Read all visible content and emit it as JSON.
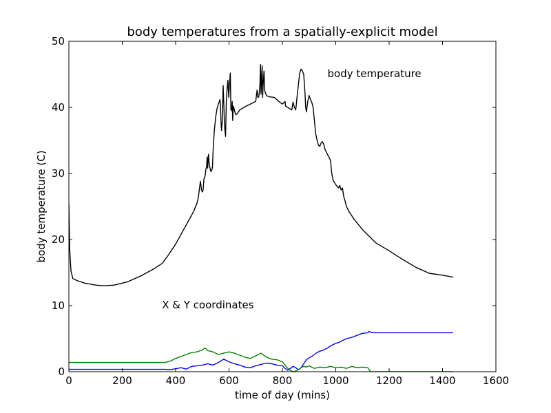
{
  "chart_data": {
    "type": "line",
    "title": "body temperatures from a spatially-explicit model",
    "xlabel": "time of day (mins)",
    "ylabel": "body temperature (C)",
    "xlim": [
      0,
      1600
    ],
    "ylim": [
      0,
      50
    ],
    "xticks": [
      0,
      200,
      400,
      600,
      800,
      1000,
      1200,
      1400,
      1600
    ],
    "yticks": [
      0,
      10,
      20,
      30,
      40,
      50
    ],
    "grid": false,
    "annotations": [
      {
        "text": "body temperature",
        "x": 1000,
        "y": 45
      },
      {
        "text": "X & Y coordinates",
        "x": 380,
        "y": 10
      }
    ],
    "series": [
      {
        "color": "#000000",
        "points": [
          [
            0,
            25.5
          ],
          [
            3,
            18.5
          ],
          [
            8,
            15.2
          ],
          [
            15,
            14.1
          ],
          [
            30,
            13.8
          ],
          [
            60,
            13.4
          ],
          [
            100,
            13.1
          ],
          [
            130,
            13.0
          ],
          [
            170,
            13.1
          ],
          [
            220,
            13.6
          ],
          [
            270,
            14.5
          ],
          [
            320,
            15.6
          ],
          [
            350,
            16.4
          ],
          [
            370,
            17.5
          ],
          [
            400,
            19.3
          ],
          [
            430,
            21.5
          ],
          [
            460,
            23.7
          ],
          [
            470,
            24.5
          ],
          [
            480,
            25.5
          ],
          [
            485,
            26.3
          ],
          [
            490,
            28.0
          ],
          [
            493,
            28.8
          ],
          [
            497,
            27.5
          ],
          [
            500,
            27.2
          ],
          [
            503,
            27.5
          ],
          [
            506,
            29.2
          ],
          [
            510,
            29.5
          ],
          [
            514,
            30.8
          ],
          [
            516,
            31.0
          ],
          [
            518,
            32.5
          ],
          [
            520,
            30.8
          ],
          [
            523,
            32.9
          ],
          [
            526,
            31.4
          ],
          [
            529,
            30.8
          ],
          [
            532,
            30.3
          ],
          [
            535,
            30.4
          ],
          [
            538,
            31.0
          ],
          [
            541,
            33.9
          ],
          [
            545,
            36.5
          ],
          [
            550,
            38.5
          ],
          [
            555,
            39.8
          ],
          [
            560,
            40.5
          ],
          [
            563,
            40.8
          ],
          [
            566,
            41.2
          ],
          [
            568,
            40.2
          ],
          [
            570,
            37.8
          ],
          [
            572,
            36.5
          ],
          [
            575,
            38.0
          ],
          [
            578,
            43.3
          ],
          [
            580,
            41.0
          ],
          [
            583,
            37.3
          ],
          [
            585,
            36.5
          ],
          [
            587,
            35.6
          ],
          [
            590,
            40.9
          ],
          [
            593,
            42.9
          ],
          [
            596,
            44.1
          ],
          [
            599,
            41.5
          ],
          [
            602,
            43.8
          ],
          [
            605,
            45.2
          ],
          [
            607,
            39.7
          ],
          [
            610,
            39.5
          ],
          [
            612,
            40.9
          ],
          [
            614,
            38.0
          ],
          [
            616,
            40.2
          ],
          [
            619,
            39.8
          ],
          [
            622,
            39.3
          ],
          [
            625,
            38.9
          ],
          [
            630,
            39.0
          ],
          [
            640,
            39.6
          ],
          [
            660,
            40.1
          ],
          [
            680,
            40.5
          ],
          [
            700,
            40.9
          ],
          [
            705,
            42.6
          ],
          [
            708,
            41.5
          ],
          [
            712,
            41.6
          ],
          [
            716,
            43.5
          ],
          [
            718,
            46.5
          ],
          [
            720,
            42.0
          ],
          [
            722,
            44.5
          ],
          [
            724,
            46.3
          ],
          [
            726,
            41.5
          ],
          [
            728,
            43.5
          ],
          [
            731,
            45.5
          ],
          [
            734,
            42.5
          ],
          [
            740,
            41.8
          ],
          [
            750,
            41.6
          ],
          [
            770,
            41.5
          ],
          [
            790,
            40.8
          ],
          [
            800,
            40.5
          ],
          [
            810,
            40.9
          ],
          [
            812,
            40.2
          ],
          [
            820,
            40.0
          ],
          [
            835,
            39.6
          ],
          [
            840,
            40.8
          ],
          [
            845,
            40.0
          ],
          [
            850,
            39.6
          ],
          [
            855,
            41.6
          ],
          [
            860,
            43.5
          ],
          [
            865,
            45.2
          ],
          [
            870,
            45.8
          ],
          [
            875,
            45.5
          ],
          [
            880,
            45.0
          ],
          [
            885,
            42.0
          ],
          [
            887,
            40.1
          ],
          [
            890,
            39.3
          ],
          [
            895,
            40.9
          ],
          [
            900,
            41.8
          ],
          [
            905,
            41.2
          ],
          [
            910,
            40.8
          ],
          [
            915,
            40.0
          ],
          [
            920,
            38.0
          ],
          [
            925,
            36.0
          ],
          [
            930,
            35.0
          ],
          [
            935,
            34.3
          ],
          [
            940,
            34.1
          ],
          [
            945,
            34.6
          ],
          [
            950,
            34.8
          ],
          [
            955,
            34.4
          ],
          [
            960,
            33.6
          ],
          [
            970,
            32.8
          ],
          [
            980,
            32.0
          ],
          [
            985,
            30.0
          ],
          [
            990,
            29.0
          ],
          [
            1000,
            28.3
          ],
          [
            1010,
            27.8
          ],
          [
            1015,
            28.2
          ],
          [
            1020,
            27.5
          ],
          [
            1025,
            27.8
          ],
          [
            1030,
            26.5
          ],
          [
            1035,
            25.8
          ],
          [
            1040,
            25.0
          ],
          [
            1050,
            24.2
          ],
          [
            1070,
            23.0
          ],
          [
            1100,
            21.5
          ],
          [
            1150,
            19.5
          ],
          [
            1200,
            18.3
          ],
          [
            1250,
            17.0
          ],
          [
            1300,
            15.8
          ],
          [
            1350,
            14.9
          ],
          [
            1400,
            14.6
          ],
          [
            1440,
            14.3
          ]
        ]
      },
      {
        "color": "#0000ff",
        "points": [
          [
            0,
            0.35
          ],
          [
            360,
            0.35
          ],
          [
            380,
            0.3
          ],
          [
            400,
            0.45
          ],
          [
            420,
            0.6
          ],
          [
            440,
            0.4
          ],
          [
            460,
            0.8
          ],
          [
            480,
            0.9
          ],
          [
            500,
            1.0
          ],
          [
            520,
            1.2
          ],
          [
            540,
            1.0
          ],
          [
            560,
            1.4
          ],
          [
            580,
            1.9
          ],
          [
            600,
            1.5
          ],
          [
            620,
            1.2
          ],
          [
            640,
            1.0
          ],
          [
            660,
            0.7
          ],
          [
            680,
            0.6
          ],
          [
            700,
            0.9
          ],
          [
            720,
            1.1
          ],
          [
            740,
            1.3
          ],
          [
            760,
            1.2
          ],
          [
            780,
            1.0
          ],
          [
            800,
            0.9
          ],
          [
            810,
            0.5
          ],
          [
            820,
            0.2
          ],
          [
            830,
            0.5
          ],
          [
            840,
            0.8
          ],
          [
            850,
            0.6
          ],
          [
            860,
            0.3
          ],
          [
            870,
            0.6
          ],
          [
            880,
            1.2
          ],
          [
            890,
            1.8
          ],
          [
            900,
            2.1
          ],
          [
            910,
            2.3
          ],
          [
            920,
            2.6
          ],
          [
            930,
            2.9
          ],
          [
            940,
            3.1
          ],
          [
            950,
            3.2
          ],
          [
            960,
            3.4
          ],
          [
            970,
            3.6
          ],
          [
            980,
            3.9
          ],
          [
            990,
            4.1
          ],
          [
            1000,
            4.3
          ],
          [
            1010,
            4.4
          ],
          [
            1020,
            4.6
          ],
          [
            1030,
            4.8
          ],
          [
            1040,
            5.0
          ],
          [
            1060,
            5.2
          ],
          [
            1080,
            5.5
          ],
          [
            1100,
            5.8
          ],
          [
            1120,
            5.9
          ],
          [
            1125,
            6.1
          ],
          [
            1130,
            6.0
          ],
          [
            1140,
            5.9
          ],
          [
            1440,
            5.9
          ]
        ]
      },
      {
        "color": "#008000",
        "points": [
          [
            0,
            1.4
          ],
          [
            360,
            1.4
          ],
          [
            380,
            1.6
          ],
          [
            400,
            2.0
          ],
          [
            420,
            2.3
          ],
          [
            440,
            2.6
          ],
          [
            460,
            2.9
          ],
          [
            480,
            3.0
          ],
          [
            500,
            3.3
          ],
          [
            510,
            3.6
          ],
          [
            520,
            3.2
          ],
          [
            540,
            3.0
          ],
          [
            560,
            2.6
          ],
          [
            580,
            2.8
          ],
          [
            600,
            3.0
          ],
          [
            620,
            2.8
          ],
          [
            640,
            2.5
          ],
          [
            660,
            2.2
          ],
          [
            680,
            2.0
          ],
          [
            700,
            2.4
          ],
          [
            720,
            2.8
          ],
          [
            740,
            2.2
          ],
          [
            760,
            1.9
          ],
          [
            780,
            1.8
          ],
          [
            800,
            1.5
          ],
          [
            810,
            1.0
          ],
          [
            820,
            0.5
          ],
          [
            830,
            0.2
          ],
          [
            840,
            0.0
          ],
          [
            850,
            0.1
          ],
          [
            860,
            0.3
          ],
          [
            870,
            0.6
          ],
          [
            880,
            0.8
          ],
          [
            890,
            0.7
          ],
          [
            900,
            0.9
          ],
          [
            920,
            0.5
          ],
          [
            940,
            0.7
          ],
          [
            960,
            0.6
          ],
          [
            980,
            0.8
          ],
          [
            1000,
            0.6
          ],
          [
            1020,
            0.7
          ],
          [
            1040,
            0.5
          ],
          [
            1060,
            0.8
          ],
          [
            1080,
            0.6
          ],
          [
            1100,
            0.7
          ],
          [
            1120,
            0.6
          ],
          [
            1125,
            0.3
          ],
          [
            1130,
            0.0
          ],
          [
            1440,
            0.0
          ]
        ]
      }
    ]
  }
}
